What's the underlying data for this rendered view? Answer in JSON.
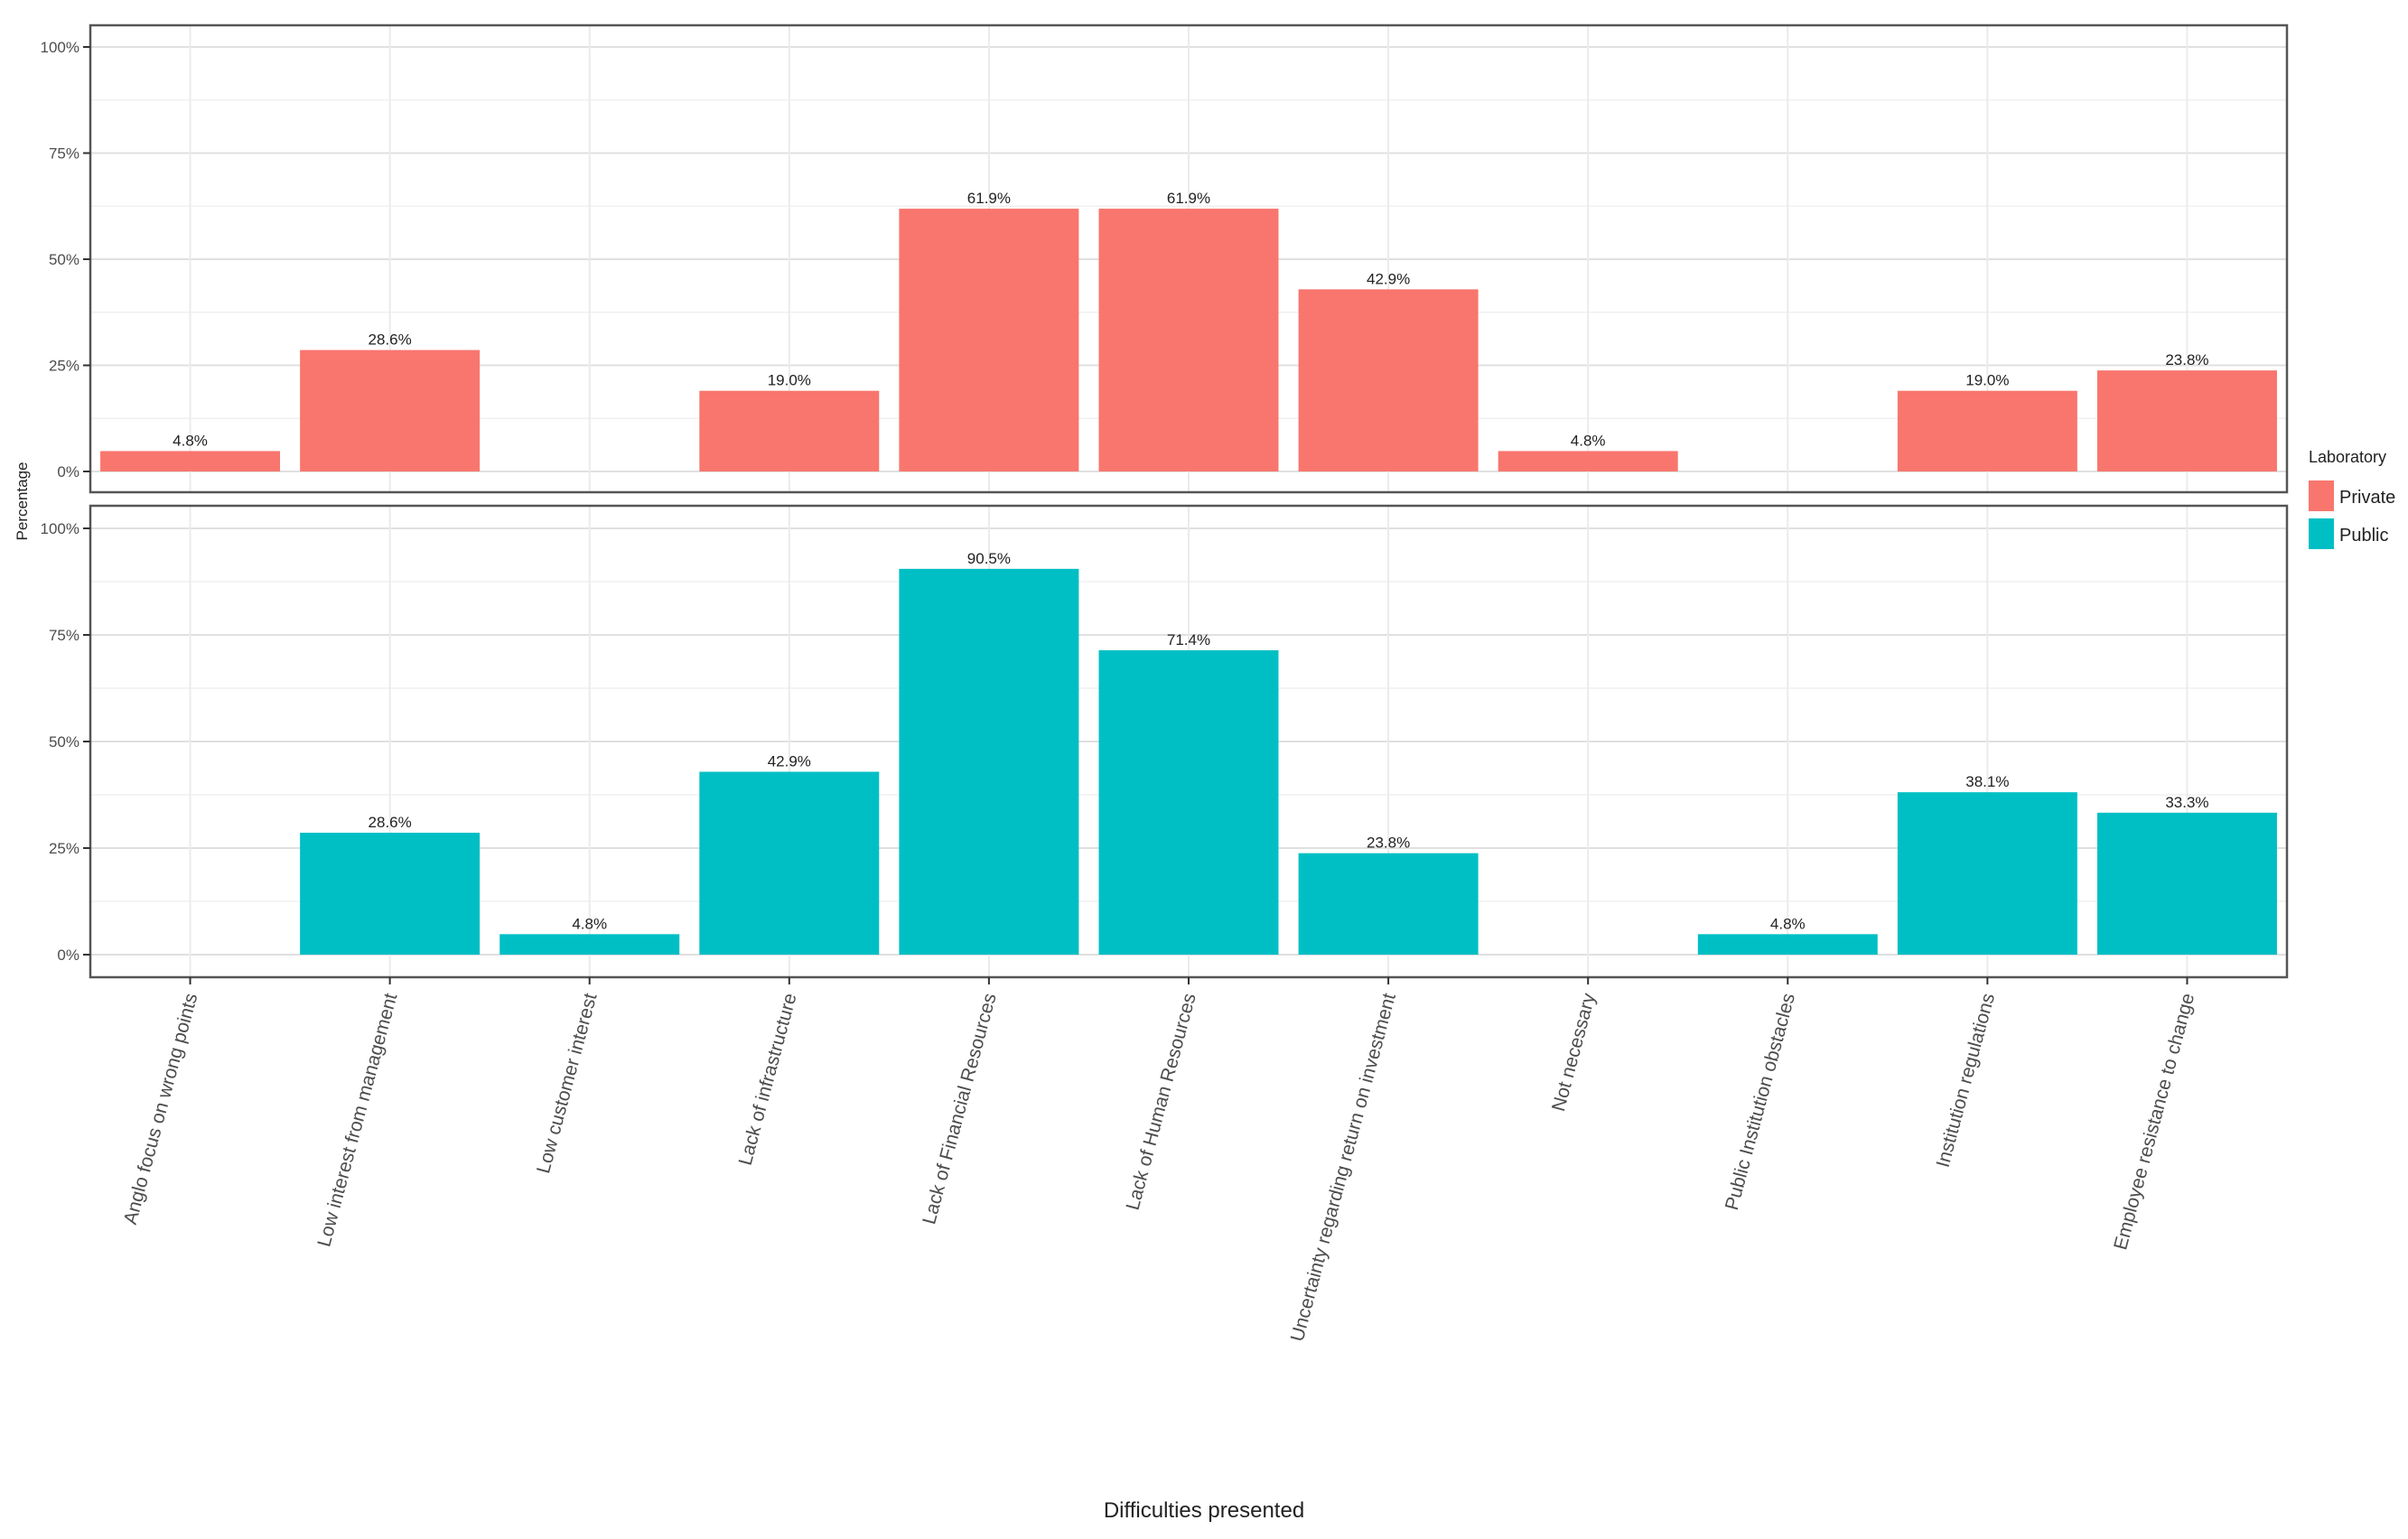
{
  "chart_data": {
    "type": "bar",
    "xlabel": "Difficulties presented",
    "ylabel": "Percentage",
    "ylim": [
      0,
      100
    ],
    "yticks": [
      "0%",
      "25%",
      "50%",
      "75%",
      "100%"
    ],
    "ytick_values": [
      0,
      25,
      50,
      75,
      100
    ],
    "grid": true,
    "legend": {
      "title": "Laboratory",
      "position": "right",
      "entries": [
        {
          "name": "Private",
          "color": "#F8766D"
        },
        {
          "name": "Public",
          "color": "#00BFC4"
        }
      ]
    },
    "categories": [
      "Anglo focus on wrong points",
      "Low interest from management",
      "Low customer interest",
      "Lack of infrastructure",
      "Lack of Financial Resources",
      "Lack of Human Resources",
      "Uncertainty regarding return on investment",
      "Not necessary",
      "Public Institution obstacles",
      "Institution regulations",
      "Employee resistance to change"
    ],
    "series": [
      {
        "name": "Private",
        "color": "#F8766D",
        "values": [
          4.8,
          28.6,
          0,
          19.0,
          61.9,
          61.9,
          42.9,
          4.8,
          0,
          19.0,
          23.8
        ],
        "labels": [
          "4.8%",
          "28.6%",
          "",
          "19.0%",
          "61.9%",
          "61.9%",
          "42.9%",
          "4.8%",
          "",
          "19.0%",
          "23.8%"
        ]
      },
      {
        "name": "Public",
        "color": "#00BFC4",
        "values": [
          0,
          28.6,
          4.8,
          42.9,
          90.5,
          71.4,
          23.8,
          0,
          4.8,
          38.1,
          33.3
        ],
        "labels": [
          "",
          "28.6%",
          "4.8%",
          "42.9%",
          "90.5%",
          "71.4%",
          "23.8%",
          "",
          "4.8%",
          "38.1%",
          "33.3%"
        ]
      }
    ]
  }
}
